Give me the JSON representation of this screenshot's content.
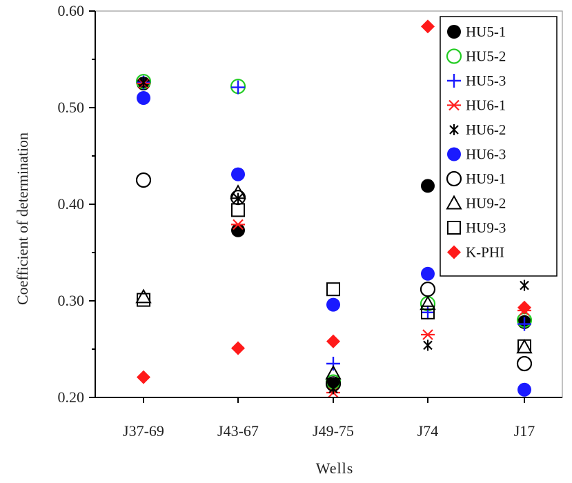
{
  "chart_data": {
    "type": "scatter",
    "title": "",
    "xlabel": "Wells",
    "ylabel": "Coefficient of determination",
    "categories": [
      "J37-69",
      "J43-67",
      "J49-75",
      "J74",
      "J17"
    ],
    "ylim": [
      0.2,
      0.6
    ],
    "yticks": [
      "0.20",
      "0.30",
      "0.40",
      "0.50",
      "0.60"
    ],
    "legend_position": "top-right",
    "grid": false,
    "series": [
      {
        "name": "HU5-1",
        "marker": "filled-circle",
        "color": "#000000",
        "values": [
          0.525,
          0.373,
          0.213,
          0.419,
          0.278
        ]
      },
      {
        "name": "HU5-2",
        "marker": "open-circle",
        "color": "#22cc22",
        "values": [
          0.527,
          0.522,
          0.216,
          0.297,
          0.28
        ]
      },
      {
        "name": "HU5-3",
        "marker": "plus",
        "color": "#1a1aff",
        "values": [
          0.526,
          0.521,
          0.235,
          0.288,
          0.276
        ]
      },
      {
        "name": "HU6-1",
        "marker": "asterisk",
        "color": "#ff2020",
        "values": [
          0.525,
          0.379,
          0.205,
          0.265,
          0.29
        ]
      },
      {
        "name": "HU6-2",
        "marker": "x-asterisk",
        "color": "#000000",
        "values": [
          0.526,
          0.406,
          0.209,
          0.254,
          0.316
        ]
      },
      {
        "name": "HU6-3",
        "marker": "filled-circle",
        "color": "#1a1aff",
        "values": [
          0.51,
          0.431,
          0.296,
          0.328,
          0.208
        ]
      },
      {
        "name": "HU9-1",
        "marker": "open-circle",
        "color": "#000000",
        "values": [
          0.425,
          0.407,
          0.214,
          0.312,
          0.235
        ]
      },
      {
        "name": "HU9-2",
        "marker": "open-triangle",
        "color": "#000000",
        "values": [
          0.304,
          0.412,
          0.225,
          0.297,
          0.252
        ]
      },
      {
        "name": "HU9-3",
        "marker": "open-square",
        "color": "#000000",
        "values": [
          0.301,
          0.394,
          0.312,
          0.288,
          0.253
        ]
      },
      {
        "name": "K-PHI",
        "marker": "diamond",
        "color": "#ff1a1a",
        "values": [
          0.221,
          0.251,
          0.258,
          0.584,
          0.293
        ]
      }
    ]
  }
}
